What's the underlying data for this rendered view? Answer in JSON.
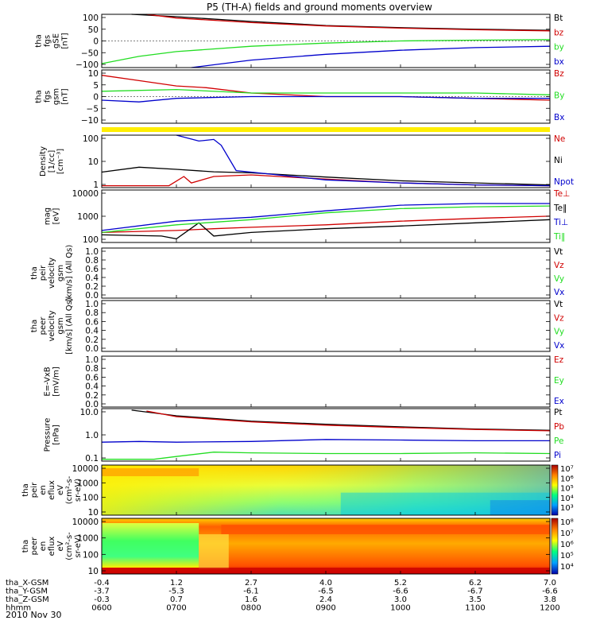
{
  "title": "P5 (TH-A) fields and ground moments overview",
  "date": "2010 Nov 30",
  "colors": {
    "black": "#000000",
    "red": "#d00000",
    "green": "#22dd22",
    "blue": "#0000cc",
    "yellow": "#ffee00"
  },
  "colorbar_ticks_1": [
    "10⁷",
    "10⁶",
    "10⁵",
    "10⁴",
    "10³"
  ],
  "colorbar_ticks_2": [
    "10⁸",
    "10⁷",
    "10⁶",
    "10⁵",
    "10⁴"
  ],
  "chart_data": [
    {
      "type": "line",
      "panel": "fgs_gse",
      "ylabel": [
        "tha",
        "fgs",
        "gSE",
        "[nT]"
      ],
      "yticks": [
        "100",
        "50",
        "0",
        "−50",
        "−100"
      ],
      "ylim": [
        -100,
        100
      ],
      "series": [
        {
          "name": "Bt",
          "color": "black",
          "x": [
            6.4,
            7,
            8,
            9,
            10,
            11,
            12
          ],
          "y": [
            100,
            91,
            73,
            58,
            50,
            44,
            40
          ]
        },
        {
          "name": "bz",
          "color": "red",
          "x": [
            6.6,
            7,
            8,
            9,
            10,
            11,
            12
          ],
          "y": [
            100,
            86,
            69,
            56,
            48,
            42,
            38
          ]
        },
        {
          "name": "by",
          "color": "green",
          "x": [
            6,
            6.5,
            7,
            8,
            9,
            10,
            11,
            12
          ],
          "y": [
            -85,
            -58,
            -40,
            -20,
            -8,
            0,
            3,
            5
          ]
        },
        {
          "name": "bx",
          "color": "blue",
          "x": [
            7.2,
            8,
            9,
            10,
            11,
            12
          ],
          "y": [
            -100,
            -72,
            -50,
            -35,
            -25,
            -20
          ]
        }
      ]
    },
    {
      "type": "line",
      "panel": "fgs_gsm",
      "ylabel": [
        "tha",
        "fgs",
        "gsm",
        "[nT]"
      ],
      "yticks": [
        "10",
        "5",
        "0",
        "−5",
        "−10"
      ],
      "ylim": [
        -15,
        15
      ],
      "series": [
        {
          "name": "Bz",
          "color": "red",
          "x": [
            6,
            6.5,
            7,
            7.4,
            8,
            9,
            10,
            11,
            12
          ],
          "y": [
            12,
            9,
            6,
            5,
            2,
            0,
            0,
            -1,
            -2
          ]
        },
        {
          "name": "By",
          "color": "green",
          "x": [
            6,
            7,
            8,
            9,
            10,
            11,
            12
          ],
          "y": [
            3,
            4,
            2,
            2,
            2,
            2,
            1
          ]
        },
        {
          "name": "Bx",
          "color": "blue",
          "x": [
            6,
            6.5,
            7,
            8,
            9,
            10,
            11,
            12
          ],
          "y": [
            -2,
            -3,
            -1,
            0,
            0,
            0,
            -1,
            -1
          ]
        }
      ]
    },
    {
      "type": "line",
      "panel": "density",
      "ylabel": [
        "Density",
        "[1/cc]",
        "[cm⁻³]"
      ],
      "yticks": [
        "100",
        "10",
        "1"
      ],
      "ylim": [
        0.4,
        200
      ],
      "yscale": "log",
      "series": [
        {
          "name": "Ne",
          "color": "red",
          "x": [
            6,
            6.9,
            7.1,
            7.2,
            7.5,
            8,
            9,
            10,
            11,
            12
          ],
          "y": [
            0.5,
            0.5,
            1.5,
            0.7,
            1.5,
            1.8,
            1.1,
            0.7,
            0.55,
            0.5
          ]
        },
        {
          "name": "Ni",
          "color": "black",
          "x": [
            6,
            6.5,
            7,
            7.5,
            8,
            9,
            10,
            11,
            12
          ],
          "y": [
            2.5,
            4.5,
            3.5,
            2.6,
            2.3,
            1.4,
            0.9,
            0.7,
            0.55
          ]
        },
        {
          "name": "Npot",
          "color": "blue",
          "x": [
            7,
            7.3,
            7.5,
            7.6,
            7.8,
            8,
            9,
            10,
            11,
            12
          ],
          "y": [
            200,
            100,
            120,
            60,
            3,
            2.5,
            1,
            0.7,
            0.55,
            0.5
          ]
        }
      ]
    },
    {
      "type": "line",
      "panel": "temperature",
      "ylabel": [
        "mag",
        "[eV]"
      ],
      "yticks": [
        "10000",
        "1000",
        "100"
      ],
      "ylim": [
        100,
        12000
      ],
      "yscale": "log",
      "series": [
        {
          "name": "Te⊥",
          "color": "red",
          "x": [
            6,
            7,
            7.5,
            8,
            9,
            10,
            11,
            12
          ],
          "y": [
            250,
            300,
            350,
            400,
            500,
            700,
            900,
            1100
          ]
        },
        {
          "name": "Te‖",
          "color": "black",
          "x": [
            6,
            6.8,
            7,
            7.3,
            7.5,
            8,
            9,
            10,
            11,
            12
          ],
          "y": [
            200,
            180,
            140,
            600,
            180,
            250,
            350,
            450,
            600,
            800
          ]
        },
        {
          "name": "Ti⊥",
          "color": "blue",
          "x": [
            6,
            7,
            8,
            9,
            10,
            11,
            12
          ],
          "y": [
            300,
            700,
            1000,
            1800,
            3000,
            3500,
            3500
          ]
        },
        {
          "name": "Ti‖",
          "color": "green",
          "x": [
            6,
            7,
            8,
            9,
            10,
            11,
            12
          ],
          "y": [
            250,
            500,
            800,
            1500,
            2200,
            2600,
            2800
          ]
        }
      ]
    },
    {
      "type": "line",
      "panel": "peir_velocity",
      "ylabel": [
        "tha",
        "peir",
        "velocity",
        "gsm",
        "[km/s] (All Qs)"
      ],
      "yticks": [
        "1.0",
        "0.8",
        "0.6",
        "0.4",
        "0.2",
        "0.0"
      ],
      "ylim": [
        0,
        1
      ],
      "series": [
        {
          "name": "Vt",
          "color": "black"
        },
        {
          "name": "Vz",
          "color": "red"
        },
        {
          "name": "Vy",
          "color": "green"
        },
        {
          "name": "Vx",
          "color": "blue"
        }
      ]
    },
    {
      "type": "line",
      "panel": "peer_velocity",
      "ylabel": [
        "tha",
        "peer",
        "velocity",
        "gsm",
        "[km/s] (All Qs)"
      ],
      "yticks": [
        "1.0",
        "0.8",
        "0.6",
        "0.4",
        "0.2",
        "0.0"
      ],
      "ylim": [
        0,
        1
      ],
      "series": [
        {
          "name": "Vt",
          "color": "black"
        },
        {
          "name": "Vz",
          "color": "red"
        },
        {
          "name": "Vy",
          "color": "green"
        },
        {
          "name": "Vx",
          "color": "blue"
        }
      ]
    },
    {
      "type": "line",
      "panel": "efield",
      "ylabel": [
        "E=-VxB",
        "[mV/m]"
      ],
      "yticks": [
        "1.0",
        "0.8",
        "0.6",
        "0.4",
        "0.2",
        "0.0"
      ],
      "ylim": [
        0,
        1
      ],
      "series": [
        {
          "name": "Ez",
          "color": "red"
        },
        {
          "name": "Ey",
          "color": "green"
        },
        {
          "name": "Ex",
          "color": "blue"
        }
      ]
    },
    {
      "type": "line",
      "panel": "pressure",
      "ylabel": [
        "Pressure",
        "[nPa]"
      ],
      "yticks": [
        "10.0",
        "1.0",
        "0.1"
      ],
      "ylim": [
        0.02,
        12
      ],
      "yscale": "log",
      "series": [
        {
          "name": "Pt",
          "color": "black",
          "x": [
            6.4,
            7,
            8,
            9,
            10,
            11,
            12
          ],
          "y": [
            10,
            5,
            2.6,
            1.8,
            1.3,
            1.0,
            0.85
          ]
        },
        {
          "name": "Pb",
          "color": "red",
          "x": [
            6.6,
            7,
            8,
            9,
            10,
            11,
            12
          ],
          "y": [
            9,
            4.5,
            2.4,
            1.6,
            1.2,
            0.95,
            0.8
          ]
        },
        {
          "name": "Pe",
          "color": "green",
          "x": [
            6,
            6.7,
            7,
            7.5,
            8,
            9,
            10,
            11,
            12
          ],
          "y": [
            0.025,
            0.025,
            0.035,
            0.06,
            0.055,
            0.05,
            0.05,
            0.055,
            0.05
          ]
        },
        {
          "name": "Pi",
          "color": "blue",
          "x": [
            6,
            6.5,
            7,
            8,
            9,
            10,
            11,
            12
          ],
          "y": [
            0.2,
            0.22,
            0.2,
            0.22,
            0.28,
            0.26,
            0.24,
            0.24
          ]
        }
      ]
    },
    {
      "type": "heatmap",
      "panel": "peir_spectrogram",
      "ylabel": [
        "tha",
        "peir",
        "en",
        "eflux",
        "eV",
        "(cm²-s-",
        "sr-eV)"
      ],
      "yticks": [
        "10000",
        "1000",
        "100",
        "10"
      ]
    },
    {
      "type": "heatmap",
      "panel": "peer_spectrogram",
      "ylabel": [
        "tha",
        "peer",
        "en",
        "eflux",
        "eV",
        "(cm²-s-",
        "sr-eV)"
      ],
      "yticks": [
        "10000",
        "1000",
        "100",
        "10"
      ]
    }
  ],
  "xaxis": {
    "rows": [
      {
        "label": "tha_X-GSM",
        "values": [
          "-0.4",
          "1.2",
          "2.7",
          "4.0",
          "5.2",
          "6.2",
          "7.0"
        ]
      },
      {
        "label": "tha_Y-GSM",
        "values": [
          "-3.7",
          "-5.3",
          "-6.1",
          "-6.5",
          "-6.6",
          "-6.7",
          "-6.6"
        ]
      },
      {
        "label": "tha_Z-GSM",
        "values": [
          "-0.3",
          "0.7",
          "1.6",
          "2.4",
          "3.0",
          "3.5",
          "3.8"
        ]
      },
      {
        "label": "hhmm",
        "values": [
          "0600",
          "0700",
          "0800",
          "0900",
          "1000",
          "1100",
          "1200"
        ]
      }
    ]
  }
}
